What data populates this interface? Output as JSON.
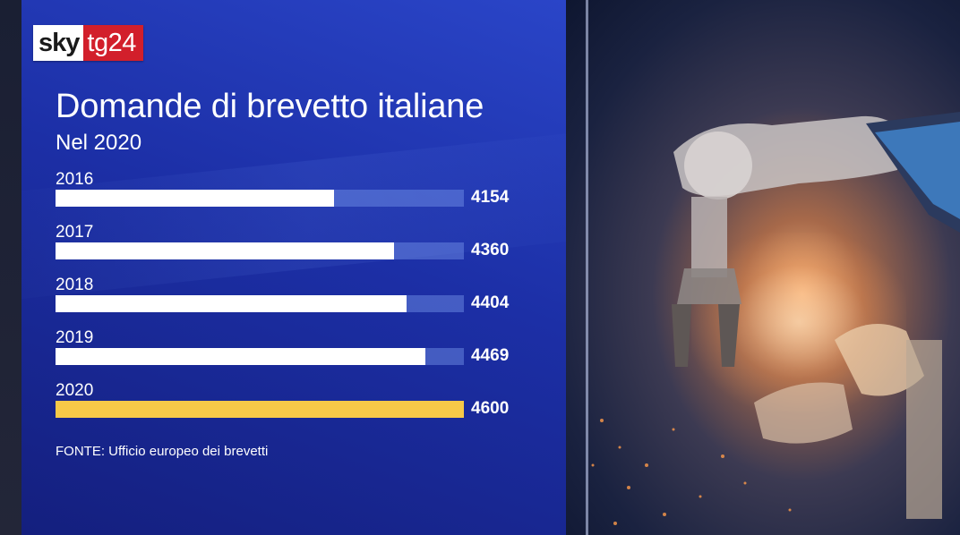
{
  "logo": {
    "sky": "sky",
    "tg": "tg24",
    "tg_color": "#d21f2b"
  },
  "title": "Domande di brevetto italiane",
  "subtitle": "Nel 2020",
  "source": "FONTE: Ufficio europeo dei brevetti",
  "chart_data": {
    "type": "bar",
    "orientation": "horizontal",
    "categories": [
      "2016",
      "2017",
      "2018",
      "2019",
      "2020"
    ],
    "values": [
      4154,
      4360,
      4404,
      4469,
      4600
    ],
    "highlight_category": "2020",
    "title": "Domande di brevetto italiane",
    "subtitle": "Nel 2020",
    "xlabel": "",
    "ylabel": "",
    "xlim": [
      0,
      4600
    ],
    "grid": false,
    "legend": "none",
    "colors": {
      "bar": "#ffffff",
      "highlight": "#f7c948",
      "panel": "#1c2fa6"
    }
  }
}
